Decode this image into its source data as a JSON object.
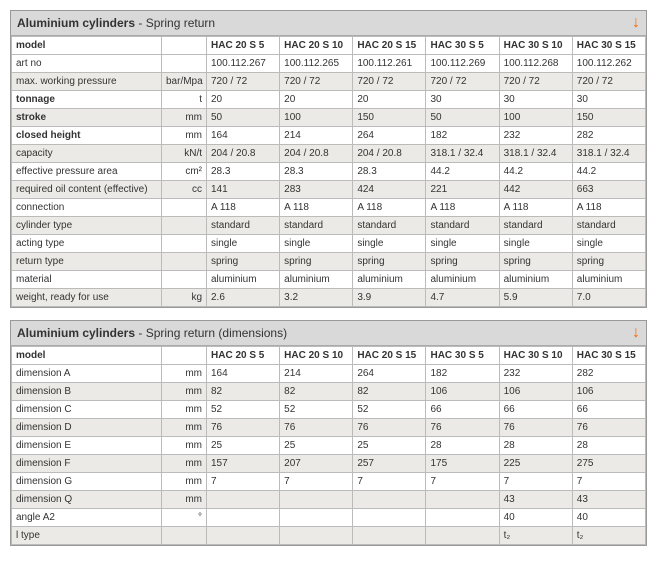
{
  "tables": [
    {
      "title_bold": "Aluminium cylinders",
      "title_rest": " - Spring return",
      "arrow_color": "#ff6600",
      "header_label": "model",
      "columns": [
        "HAC 20 S 5",
        "HAC 20 S 10",
        "HAC 20 S 15",
        "HAC 30 S 5",
        "HAC 30 S 10",
        "HAC 30 S 15"
      ],
      "rows": [
        {
          "label": "art no",
          "unit": "",
          "values": [
            "100.112.267",
            "100.112.265",
            "100.112.261",
            "100.112.269",
            "100.112.268",
            "100.112.262"
          ],
          "bold": false,
          "band": false
        },
        {
          "label": "max. working pressure",
          "unit": "bar/Mpa",
          "values": [
            "720 / 72",
            "720 / 72",
            "720 / 72",
            "720 / 72",
            "720 / 72",
            "720 / 72"
          ],
          "bold": false,
          "band": true
        },
        {
          "label": "tonnage",
          "unit": "t",
          "values": [
            "20",
            "20",
            "20",
            "30",
            "30",
            "30"
          ],
          "bold": true,
          "band": false
        },
        {
          "label": "stroke",
          "unit": "mm",
          "values": [
            "50",
            "100",
            "150",
            "50",
            "100",
            "150"
          ],
          "bold": true,
          "band": true
        },
        {
          "label": "closed height",
          "unit": "mm",
          "values": [
            "164",
            "214",
            "264",
            "182",
            "232",
            "282"
          ],
          "bold": true,
          "band": false
        },
        {
          "label": "capacity",
          "unit": "kN/t",
          "values": [
            "204 / 20.8",
            "204 / 20.8",
            "204 / 20.8",
            "318.1 / 32.4",
            "318.1 / 32.4",
            "318.1 / 32.4"
          ],
          "bold": false,
          "band": true
        },
        {
          "label": "effective pressure area",
          "unit": "cm²",
          "values": [
            "28.3",
            "28.3",
            "28.3",
            "44.2",
            "44.2",
            "44.2"
          ],
          "bold": false,
          "band": false
        },
        {
          "label": "required oil content (effective)",
          "unit": "cc",
          "values": [
            "141",
            "283",
            "424",
            "221",
            "442",
            "663"
          ],
          "bold": false,
          "band": true
        },
        {
          "label": "connection",
          "unit": "",
          "values": [
            "A 118",
            "A 118",
            "A 118",
            "A 118",
            "A 118",
            "A 118"
          ],
          "bold": false,
          "band": false
        },
        {
          "label": "cylinder type",
          "unit": "",
          "values": [
            "standard",
            "standard",
            "standard",
            "standard",
            "standard",
            "standard"
          ],
          "bold": false,
          "band": true
        },
        {
          "label": "acting type",
          "unit": "",
          "values": [
            "single",
            "single",
            "single",
            "single",
            "single",
            "single"
          ],
          "bold": false,
          "band": false
        },
        {
          "label": "return type",
          "unit": "",
          "values": [
            "spring",
            "spring",
            "spring",
            "spring",
            "spring",
            "spring"
          ],
          "bold": false,
          "band": true
        },
        {
          "label": "material",
          "unit": "",
          "values": [
            "aluminium",
            "aluminium",
            "aluminium",
            "aluminium",
            "aluminium",
            "aluminium"
          ],
          "bold": false,
          "band": false
        },
        {
          "label": "weight, ready for use",
          "unit": "kg",
          "values": [
            "2.6",
            "3.2",
            "3.9",
            "4.7",
            "5.9",
            "7.0"
          ],
          "bold": false,
          "band": true
        }
      ]
    },
    {
      "title_bold": "Aluminium cylinders",
      "title_rest": " - Spring return (dimensions)",
      "arrow_color": "#ff6600",
      "header_label": "model",
      "columns": [
        "HAC 20 S 5",
        "HAC 20 S 10",
        "HAC 20 S 15",
        "HAC 30 S 5",
        "HAC 30 S 10",
        "HAC 30 S 15"
      ],
      "rows": [
        {
          "label": "dimension A",
          "unit": "mm",
          "values": [
            "164",
            "214",
            "264",
            "182",
            "232",
            "282"
          ],
          "bold": false,
          "band": false
        },
        {
          "label": "dimension B",
          "unit": "mm",
          "values": [
            "82",
            "82",
            "82",
            "106",
            "106",
            "106"
          ],
          "bold": false,
          "band": true
        },
        {
          "label": "dimension C",
          "unit": "mm",
          "values": [
            "52",
            "52",
            "52",
            "66",
            "66",
            "66"
          ],
          "bold": false,
          "band": false
        },
        {
          "label": "dimension D",
          "unit": "mm",
          "values": [
            "76",
            "76",
            "76",
            "76",
            "76",
            "76"
          ],
          "bold": false,
          "band": true
        },
        {
          "label": "dimension E",
          "unit": "mm",
          "values": [
            "25",
            "25",
            "25",
            "28",
            "28",
            "28"
          ],
          "bold": false,
          "band": false
        },
        {
          "label": "dimension F",
          "unit": "mm",
          "values": [
            "157",
            "207",
            "257",
            "175",
            "225",
            "275"
          ],
          "bold": false,
          "band": true
        },
        {
          "label": "dimension G",
          "unit": "mm",
          "values": [
            "7",
            "7",
            "7",
            "7",
            "7",
            "7"
          ],
          "bold": false,
          "band": false
        },
        {
          "label": "dimension Q",
          "unit": "mm",
          "values": [
            "",
            "",
            "",
            "",
            "43",
            "43"
          ],
          "bold": false,
          "band": true
        },
        {
          "label": "angle A2",
          "unit": "°",
          "values": [
            "",
            "",
            "",
            "",
            "40",
            "40"
          ],
          "bold": false,
          "band": false
        },
        {
          "label": "l type",
          "unit": "",
          "values": [
            "",
            "",
            "",
            "",
            "t₂",
            "t₂"
          ],
          "bold": false,
          "band": true
        }
      ]
    }
  ]
}
